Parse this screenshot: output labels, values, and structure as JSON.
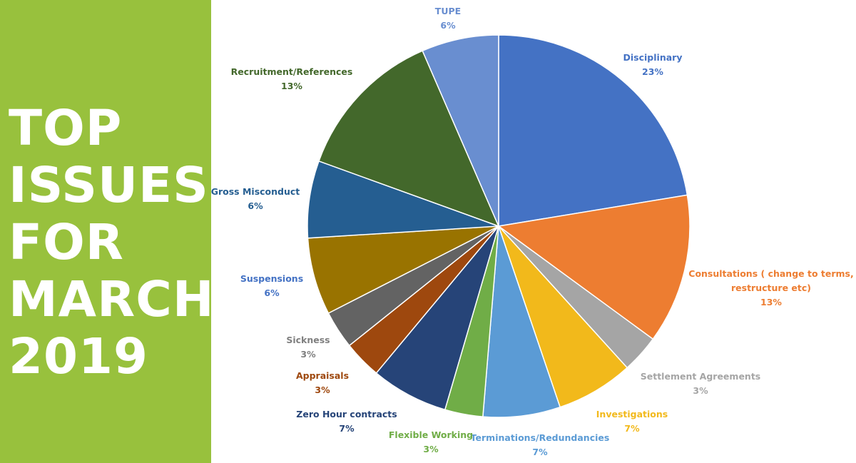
{
  "headline": {
    "lines": [
      "TOP",
      "ISSUES",
      "FOR",
      "MARCH",
      "2019"
    ]
  },
  "colors": {
    "sidebar_bg": "#98c13d",
    "headline_text": "#ffffff"
  },
  "chart_data": {
    "type": "pie",
    "title": "",
    "start_angle_deg": 0,
    "direction": "clockwise",
    "slices": [
      {
        "name": "Disciplinary",
        "label": [
          "Disciplinary"
        ],
        "pct": "23%",
        "value": 23,
        "color": "#4472c4",
        "text_color": "#4472c4"
      },
      {
        "name": "Consultations ( change to terms, restructure etc)",
        "label": [
          "Consultations ( change to terms,",
          "restructure etc)"
        ],
        "pct": "13%",
        "value": 13,
        "color": "#ed7d31",
        "text_color": "#ed7d31"
      },
      {
        "name": "Settlement Agreements",
        "label": [
          "Settlement Agreements"
        ],
        "pct": "3%",
        "value": 3.3,
        "color": "#a5a5a5",
        "text_color": "#a5a5a5"
      },
      {
        "name": "Investigations",
        "label": [
          "Investigations"
        ],
        "pct": "7%",
        "value": 6.7,
        "color": "#f2b91b",
        "text_color": "#f2b91b"
      },
      {
        "name": "Terminations/Redundancies",
        "label": [
          "Terminations/Redundancies"
        ],
        "pct": "7%",
        "value": 6.7,
        "color": "#5b9bd5",
        "text_color": "#5b9bd5"
      },
      {
        "name": "Flexible Working",
        "label": [
          "Flexible Working"
        ],
        "pct": "3%",
        "value": 3.3,
        "color": "#70ad47",
        "text_color": "#70ad47"
      },
      {
        "name": "Zero Hour contracts",
        "label": [
          "Zero Hour contracts"
        ],
        "pct": "7%",
        "value": 6.7,
        "color": "#264478",
        "text_color": "#264478"
      },
      {
        "name": "Appraisals",
        "label": [
          "Appraisals"
        ],
        "pct": "3%",
        "value": 3.3,
        "color": "#9e480e",
        "text_color": "#9e480e"
      },
      {
        "name": "Sickness",
        "label": [
          "Sickness"
        ],
        "pct": "3%",
        "value": 3.3,
        "color": "#636363",
        "text_color": "#7f7f7f"
      },
      {
        "name": "Suspensions",
        "label": [
          "Suspensions"
        ],
        "pct": "6%",
        "value": 6.7,
        "color": "#997300",
        "text_color": "#4472c4"
      },
      {
        "name": "Gross Misconduct",
        "label": [
          "Gross Misconduct"
        ],
        "pct": "6%",
        "value": 6.7,
        "color": "#255e91",
        "text_color": "#255e91"
      },
      {
        "name": "Recruitment/References",
        "label": [
          "Recruitment/References"
        ],
        "pct": "13%",
        "value": 13.3,
        "color": "#43682b",
        "text_color": "#43682b"
      },
      {
        "name": "TUPE",
        "label": [
          "TUPE"
        ],
        "pct": "6%",
        "value": 6.7,
        "color": "#698ed0",
        "text_color": "#698ed0"
      }
    ]
  }
}
